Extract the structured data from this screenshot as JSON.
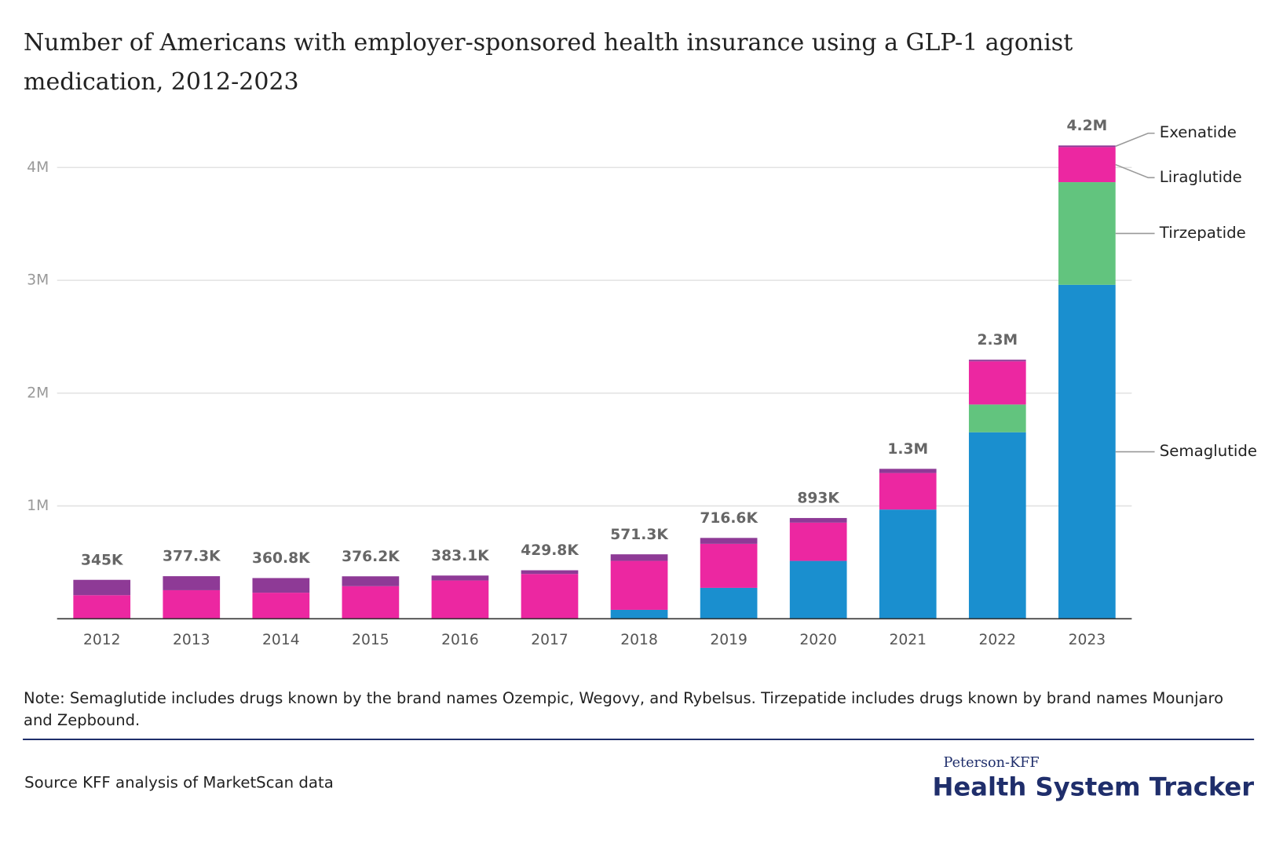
{
  "chart_data": {
    "type": "stacked_bar",
    "title": "Number of Americans with employer-sponsored health insurance using a GLP-1 agonist medication, 2012-2023",
    "note": "Note: Semaglutide includes drugs known by the brand names Ozempic, Wegovy, and Rybelsus. Tirzepatide includes drugs known by brand names Mounjaro and Zepbound.",
    "source": "Source KFF analysis of MarketScan data",
    "brand_top": "Peterson-KFF",
    "brand": "Health System Tracker",
    "categories": [
      "2012",
      "2013",
      "2014",
      "2015",
      "2016",
      "2017",
      "2018",
      "2019",
      "2020",
      "2021",
      "2022",
      "2023"
    ],
    "series": [
      {
        "name": "Semaglutide",
        "color": "#1a8fcf",
        "values": [
          null,
          null,
          null,
          null,
          null,
          null,
          79000,
          274000,
          513000,
          968000,
          1653000,
          2960000
        ]
      },
      {
        "name": "Tirzepatide",
        "color": "#62c47e",
        "values": [
          null,
          null,
          null,
          null,
          null,
          null,
          null,
          null,
          null,
          null,
          246000,
          910000
        ]
      },
      {
        "name": "Liraglutide",
        "color": "#ec27a1",
        "values": [
          209000,
          253000,
          231000,
          289000,
          339000,
          397000,
          434000,
          390000,
          339000,
          324000,
          383000,
          311000
        ]
      },
      {
        "name": "Exenatide",
        "color": "#8e3a96",
        "values": [
          136000,
          124300,
          129800,
          87200,
          44100,
          32800,
          58300,
          52600,
          41000,
          37000,
          14000,
          14000
        ]
      }
    ],
    "totals": {
      "values": [
        345000,
        377300,
        360800,
        376200,
        383100,
        429800,
        571300,
        716600,
        893000,
        1329000,
        2296000,
        4195000
      ],
      "value_labels": [
        "345K",
        "377.3K",
        "360.8K",
        "376.2K",
        "383.1K",
        "429.8K",
        "571.3K",
        "716.6K",
        "893K",
        "1.3M",
        "2.3M",
        "4.2M"
      ]
    },
    "ylim": [
      0,
      4400000
    ],
    "yticks": [
      {
        "value": 1000000,
        "label": "1M"
      },
      {
        "value": 2000000,
        "label": "2M"
      },
      {
        "value": 3000000,
        "label": "3M"
      },
      {
        "value": 4000000,
        "label": "4M"
      }
    ],
    "grid": true
  }
}
